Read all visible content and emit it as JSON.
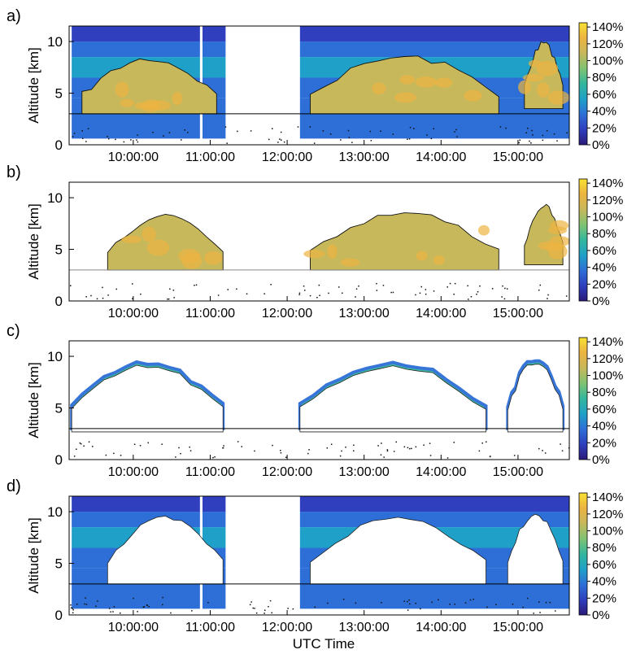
{
  "figure": {
    "xlabel": "UTC Time",
    "colors": {
      "colormap": [
        "#2a1a7a",
        "#2f3fbd",
        "#2d6fd6",
        "#1fa0c8",
        "#34b79e",
        "#7fc372",
        "#c7b85b",
        "#ecb341",
        "#f7e132"
      ]
    }
  },
  "chart_data": [
    {
      "type": "heatmap",
      "panel_label": "a)",
      "ylabel": "Altitude [km]",
      "xlabel": "",
      "x_tick_labels": [
        "10:00:00",
        "11:00:00",
        "12:00:00",
        "13:00:00",
        "14:00:00",
        "15:00:00"
      ],
      "xlim": [
        "09:10:00",
        "15:40:00"
      ],
      "ylim": [
        0,
        11.5
      ],
      "y_ticks": [
        0,
        5,
        10
      ],
      "reference_line_altitude_km": 3,
      "colorbar": {
        "range": [
          0,
          145
        ],
        "tick_labels": [
          "140%",
          "120%",
          "100%",
          "80%",
          "60%",
          "40%",
          "20%",
          "0%"
        ]
      },
      "observed_intervals": [
        [
          "09:12:00",
          "10:52:00"
        ],
        [
          "10:54:00",
          "11:12:00"
        ],
        [
          "12:10:00",
          "15:40:00"
        ]
      ],
      "cloud_layers": [
        {
          "start": "09:20:00",
          "end": "11:05:00",
          "base_km": 3.0,
          "top_km": 8.3
        },
        {
          "start": "12:18:00",
          "end": "14:45:00",
          "base_km": 3.0,
          "top_km": 8.5
        },
        {
          "start": "15:05:00",
          "end": "15:35:00",
          "base_km": 3.5,
          "top_km": 9.8
        }
      ]
    },
    {
      "type": "heatmap",
      "panel_label": "b)",
      "ylabel": "Altitude [km]",
      "xlabel": "",
      "x_tick_labels": [
        "10:00:00",
        "11:00:00",
        "12:00:00",
        "13:00:00",
        "14:00:00",
        "15:00:00"
      ],
      "xlim": [
        "09:10:00",
        "15:40:00"
      ],
      "ylim": [
        0,
        11.5
      ],
      "y_ticks": [
        0,
        5,
        10
      ],
      "reference_line_altitude_km": 3,
      "colorbar": {
        "range": [
          0,
          145
        ],
        "tick_labels": [
          "140%",
          "120%",
          "100%",
          "80%",
          "60%",
          "40%",
          "20%",
          "0%"
        ]
      },
      "cloud_layers": [
        {
          "start": "09:40:00",
          "end": "11:10:00",
          "base_km": 3.0,
          "top_km": 8.3
        },
        {
          "start": "12:18:00",
          "end": "14:45:00",
          "base_km": 3.0,
          "top_km": 8.5
        },
        {
          "start": "15:05:00",
          "end": "15:35:00",
          "base_km": 3.5,
          "top_km": 9.2
        }
      ]
    },
    {
      "type": "heatmap",
      "panel_label": "c)",
      "ylabel": "Altitude [km]",
      "xlabel": "",
      "x_tick_labels": [
        "10:00:00",
        "11:00:00",
        "12:00:00",
        "13:00:00",
        "14:00:00",
        "15:00:00"
      ],
      "xlim": [
        "09:10:00",
        "15:40:00"
      ],
      "ylim": [
        0,
        11.5
      ],
      "y_ticks": [
        0,
        5,
        10
      ],
      "reference_line_altitude_km": 3,
      "colorbar": {
        "range": [
          0,
          145
        ],
        "tick_labels": [
          "140%",
          "120%",
          "100%",
          "80%",
          "60%",
          "40%",
          "20%",
          "0%"
        ]
      },
      "cloud_layers": [
        {
          "start": "09:12:00",
          "end": "11:10:00",
          "base_km": 3.0,
          "top_km": 9.3
        },
        {
          "start": "12:10:00",
          "end": "14:35:00",
          "base_km": 3.0,
          "top_km": 9.4
        },
        {
          "start": "14:52:00",
          "end": "15:35:00",
          "base_km": 3.0,
          "top_km": 9.8
        }
      ]
    },
    {
      "type": "heatmap",
      "panel_label": "d)",
      "ylabel": "Altitude [km]",
      "xlabel": "UTC Time",
      "x_tick_labels": [
        "10:00:00",
        "11:00:00",
        "12:00:00",
        "13:00:00",
        "14:00:00",
        "15:00:00"
      ],
      "xlim": [
        "09:10:00",
        "15:40:00"
      ],
      "ylim": [
        0,
        11.5
      ],
      "y_ticks": [
        0,
        5,
        10
      ],
      "reference_line_altitude_km": 3,
      "colorbar": {
        "range": [
          0,
          145
        ],
        "tick_labels": [
          "140%",
          "120%",
          "100%",
          "80%",
          "60%",
          "40%",
          "20%",
          "0%"
        ]
      },
      "observed_intervals": [
        [
          "09:12:00",
          "10:52:00"
        ],
        [
          "10:54:00",
          "11:12:00"
        ],
        [
          "12:10:00",
          "15:40:00"
        ]
      ],
      "cloud_layers": [
        {
          "start": "09:40:00",
          "end": "11:10:00",
          "base_km": 3.0,
          "top_km": 9.3
        },
        {
          "start": "12:18:00",
          "end": "14:35:00",
          "base_km": 3.0,
          "top_km": 9.4
        },
        {
          "start": "14:52:00",
          "end": "15:35:00",
          "base_km": 3.0,
          "top_km": 9.8
        }
      ]
    }
  ]
}
